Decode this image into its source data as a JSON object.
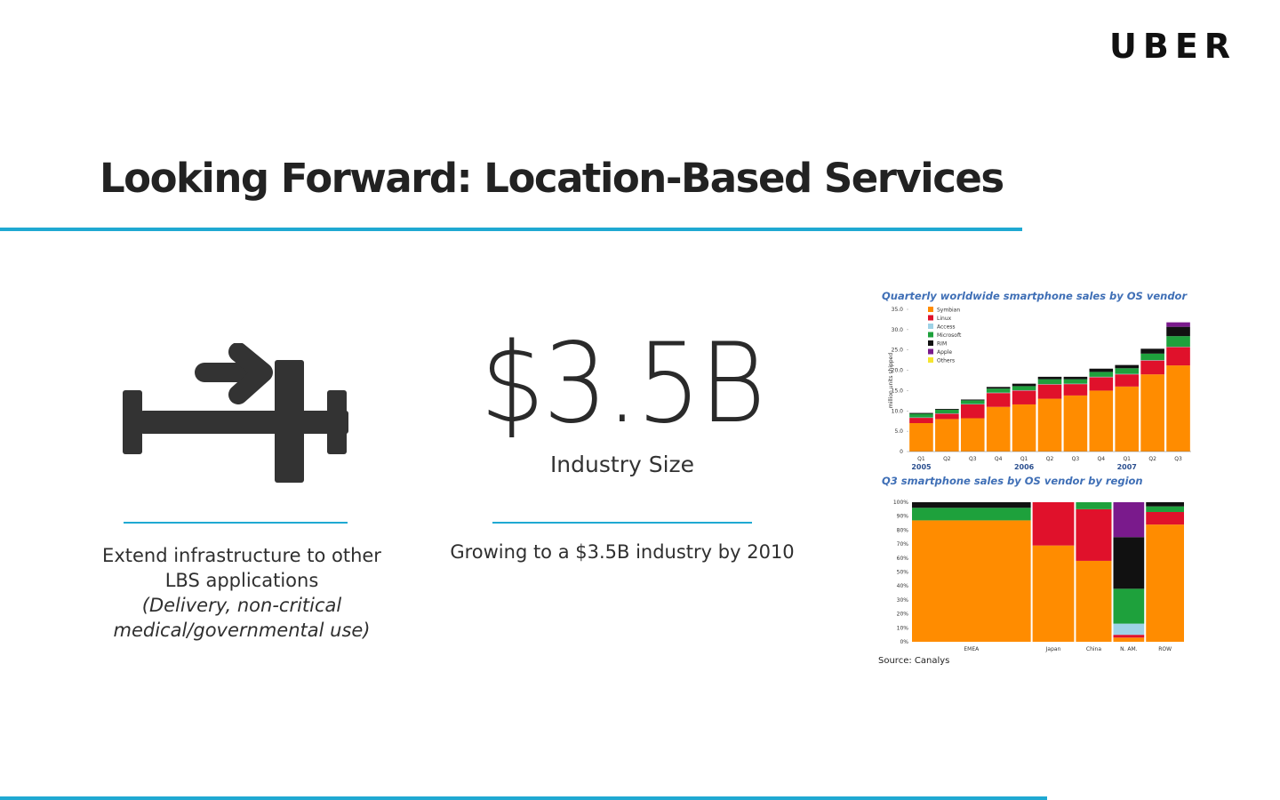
{
  "brand": {
    "logo_text": "UBER"
  },
  "header": {
    "title": "Looking Forward: Location-Based Services"
  },
  "colors": {
    "accent": "#1fa9d2",
    "icon": "#333333"
  },
  "columns": {
    "infrastructure": {
      "icon": "road-arrow-icon",
      "line1": "Extend infrastructure to other",
      "line2": "LBS applications",
      "note1": "(Delivery, non-critical",
      "note2": "medical/governmental use)"
    },
    "industry": {
      "big_value": "$3.5B",
      "label": "Industry Size",
      "description": "Growing to a $3.5B industry by 2010"
    }
  },
  "chart_data": [
    {
      "type": "bar",
      "stacked": true,
      "title": "Quarterly worldwide smartphone sales by OS vendor",
      "xlabel": "",
      "ylabel": "million units shipped",
      "ylim": [
        0,
        35
      ],
      "yticks": [
        "0",
        "5.0",
        "10.0",
        "15.0",
        "20.0",
        "25.0",
        "30.0",
        "35.0"
      ],
      "categories": [
        "Q1",
        "Q2",
        "Q3",
        "Q4",
        "Q1",
        "Q2",
        "Q3",
        "Q4",
        "Q1",
        "Q2",
        "Q3"
      ],
      "year_labels": [
        {
          "label": "2005",
          "index": 0
        },
        {
          "label": "2006",
          "index": 4
        },
        {
          "label": "2007",
          "index": 8
        }
      ],
      "legend_position": "top-left",
      "series": [
        {
          "name": "Symbian",
          "color": "#ff8c00",
          "values": [
            7.0,
            8.0,
            8.2,
            11.0,
            11.6,
            13.0,
            13.8,
            15.0,
            16.0,
            19.0,
            21.2
          ]
        },
        {
          "name": "Linux",
          "color": "#e0112b",
          "values": [
            1.3,
            1.3,
            3.4,
            3.4,
            3.4,
            3.5,
            2.8,
            3.3,
            3.0,
            3.4,
            4.5
          ]
        },
        {
          "name": "Access",
          "color": "#9ed2e6",
          "values": [
            0.1,
            0.1,
            0.1,
            0.1,
            0.1,
            0.1,
            0.1,
            0.1,
            0.1,
            0.1,
            0.1
          ]
        },
        {
          "name": "Microsoft",
          "color": "#1ea13c",
          "values": [
            0.9,
            0.9,
            0.9,
            1.0,
            1.0,
            1.2,
            1.1,
            1.2,
            1.4,
            1.6,
            2.6
          ]
        },
        {
          "name": "RIM",
          "color": "#111111",
          "values": [
            0.2,
            0.2,
            0.2,
            0.4,
            0.6,
            0.6,
            0.6,
            0.8,
            0.8,
            1.2,
            2.3
          ]
        },
        {
          "name": "Apple",
          "color": "#7a1a8c",
          "values": [
            0.0,
            0.0,
            0.0,
            0.0,
            0.0,
            0.0,
            0.0,
            0.0,
            0.0,
            0.0,
            1.1
          ]
        },
        {
          "name": "Others",
          "color": "#f5e530",
          "values": [
            0.0,
            0.0,
            0.0,
            0.0,
            0.0,
            0.0,
            0.0,
            0.0,
            0.0,
            0.0,
            0.0
          ]
        }
      ]
    },
    {
      "type": "bar",
      "stacked": true,
      "percent": true,
      "title": "Q3 smartphone sales by OS vendor by region",
      "xlabel": "",
      "ylabel": "",
      "ylim": [
        0,
        100
      ],
      "yticks": [
        "0%",
        "10%",
        "20%",
        "30%",
        "40%",
        "50%",
        "60%",
        "70%",
        "80%",
        "90%",
        "100%"
      ],
      "categories": [
        "EMEA",
        "Japan",
        "China",
        "N. AM.",
        "ROW"
      ],
      "category_widths": [
        1.0,
        0.35,
        0.3,
        0.26,
        0.32
      ],
      "series": [
        {
          "name": "Symbian",
          "color": "#ff8c00",
          "values": [
            87,
            69,
            58,
            3,
            84
          ]
        },
        {
          "name": "Linux",
          "color": "#e0112b",
          "values": [
            0,
            31,
            37,
            2,
            9
          ]
        },
        {
          "name": "Access",
          "color": "#9ed2e6",
          "values": [
            0,
            0,
            0,
            8,
            0
          ]
        },
        {
          "name": "Microsoft",
          "color": "#1ea13c",
          "values": [
            9,
            0,
            5,
            25,
            4
          ]
        },
        {
          "name": "RIM",
          "color": "#111111",
          "values": [
            4,
            0,
            0,
            37,
            3
          ]
        },
        {
          "name": "Apple",
          "color": "#7a1a8c",
          "values": [
            0,
            0,
            0,
            25,
            0
          ]
        },
        {
          "name": "Others",
          "color": "#f5e530",
          "values": [
            0,
            0,
            0,
            0,
            0
          ]
        }
      ],
      "source": "Source: Canalys"
    }
  ]
}
